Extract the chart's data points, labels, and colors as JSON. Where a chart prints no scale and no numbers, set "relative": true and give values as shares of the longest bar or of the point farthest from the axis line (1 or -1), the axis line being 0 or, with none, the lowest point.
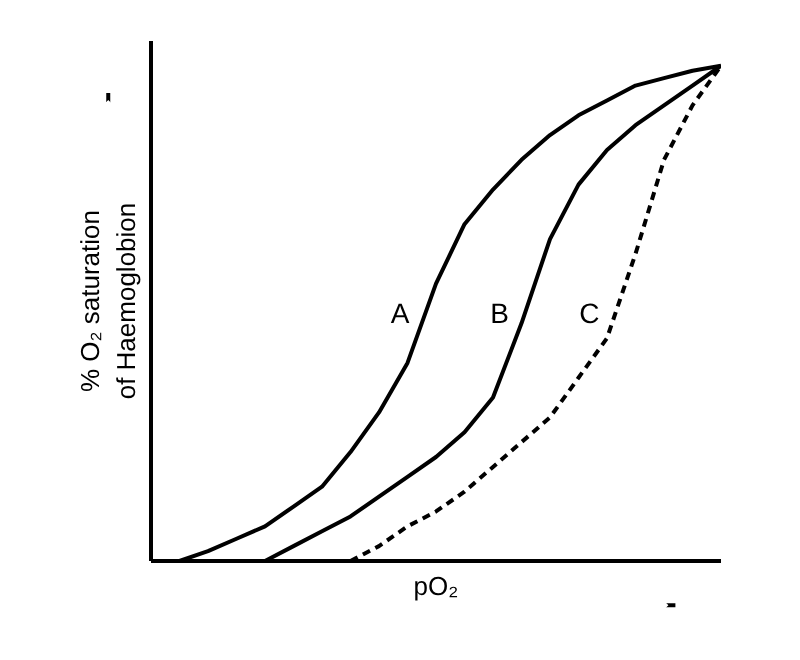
{
  "chart_data": {
    "type": "line",
    "relative": true,
    "xlabel": "pO₂",
    "ylabel": "% O₂ saturation of Haemoglobion",
    "marker": "none",
    "categories": [
      null,
      null,
      null,
      null,
      null,
      null,
      null,
      null,
      null,
      null,
      null,
      null,
      null,
      null,
      null,
      null,
      null,
      null,
      null,
      null,
      null
    ],
    "series": [
      {
        "name": "A",
        "color": "#000000",
        "line_style": "solid",
        "values": [
          null,
          0,
          0.02,
          0.045,
          0.07,
          0.11,
          0.15,
          0.22,
          0.3,
          0.4,
          0.56,
          0.68,
          0.75,
          0.81,
          0.86,
          0.9,
          0.93,
          0.96,
          0.975,
          0.99,
          1.0
        ]
      },
      {
        "name": "B",
        "color": "#000000",
        "line_style": "solid",
        "values": [
          null,
          null,
          null,
          null,
          0,
          0.03,
          0.06,
          0.09,
          0.13,
          0.17,
          0.21,
          0.26,
          0.33,
          0.48,
          0.65,
          0.76,
          0.83,
          0.88,
          0.92,
          0.96,
          1.0
        ]
      },
      {
        "name": "C",
        "color": "#000000",
        "line_style": "dashed",
        "values": [
          null,
          null,
          null,
          null,
          null,
          null,
          null,
          0,
          0.03,
          0.07,
          0.1,
          0.14,
          0.19,
          0.24,
          0.29,
          0.37,
          0.45,
          0.62,
          0.81,
          0.92,
          1.0
        ]
      }
    ]
  }
}
